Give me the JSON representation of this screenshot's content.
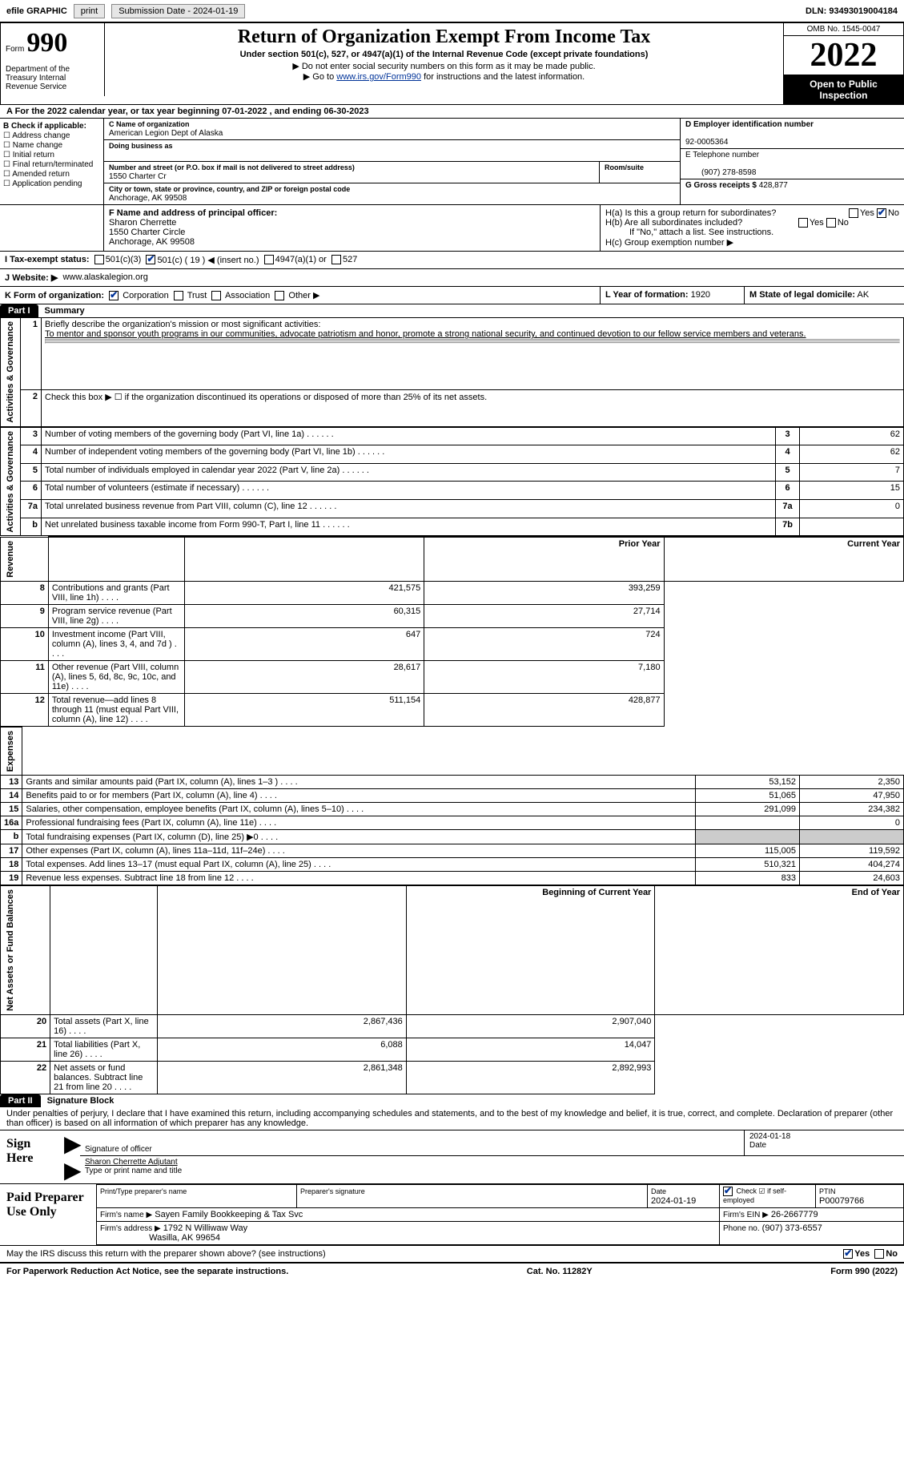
{
  "topbar": {
    "efile": "efile GRAPHIC",
    "print": "print",
    "submission": "Submission Date - 2024-01-19",
    "dln": "DLN: 93493019004184"
  },
  "header": {
    "form": "Form",
    "num": "990",
    "dept": "Department of the Treasury Internal Revenue Service",
    "title": "Return of Organization Exempt From Income Tax",
    "sub1": "Under section 501(c), 527, or 4947(a)(1) of the Internal Revenue Code (except private foundations)",
    "note1": "▶ Do not enter social security numbers on this form as it may be made public.",
    "note2_pre": "▶ Go to ",
    "note2_link": "www.irs.gov/Form990",
    "note2_post": " for instructions and the latest information.",
    "omb": "OMB No. 1545-0047",
    "year": "2022",
    "open": "Open to Public Inspection"
  },
  "lineA": "A For the 2022 calendar year, or tax year beginning 07-01-2022    , and ending 06-30-2023",
  "B": {
    "hdr": "B Check if applicable:",
    "opts": [
      "Address change",
      "Name change",
      "Initial return",
      "Final return/terminated",
      "Amended return",
      "Application pending"
    ]
  },
  "C": {
    "name_lbl": "C Name of organization",
    "name": "American Legion Dept of Alaska",
    "dba_lbl": "Doing business as",
    "dba": "",
    "street_lbl": "Number and street (or P.O. box if mail is not delivered to street address)",
    "room_lbl": "Room/suite",
    "street": "1550 Charter Cr",
    "city_lbl": "City or town, state or province, country, and ZIP or foreign postal code",
    "city": "Anchorage, AK  99508"
  },
  "D": {
    "lbl": "D Employer identification number",
    "val": "92-0005364"
  },
  "E": {
    "lbl": "E Telephone number",
    "val": "(907) 278-8598"
  },
  "G": {
    "lbl": "G Gross receipts $",
    "val": "428,877"
  },
  "F": {
    "lbl": "F  Name and address of principal officer:",
    "name": "Sharon Cherrette",
    "addr1": "1550 Charter Circle",
    "addr2": "Anchorage, AK  99508"
  },
  "H": {
    "a": "H(a)  Is this a group return for subordinates?",
    "a_ans": "No",
    "b": "H(b)  Are all subordinates included?",
    "b_note": "If \"No,\" attach a list. See instructions.",
    "c": "H(c)  Group exemption number ▶"
  },
  "I": {
    "lbl": "I    Tax-exempt status:",
    "opts": [
      "501(c)(3)",
      "501(c) ( 19 ) ◀ (insert no.)",
      "4947(a)(1) or",
      "527"
    ]
  },
  "J": {
    "lbl": "J   Website: ▶",
    "val": "www.alaskalegion.org"
  },
  "K": {
    "lbl": "K Form of organization:",
    "opts": [
      "Corporation",
      "Trust",
      "Association",
      "Other ▶"
    ]
  },
  "L": {
    "lbl": "L Year of formation:",
    "val": "1920"
  },
  "M": {
    "lbl": "M State of legal domicile:",
    "val": "AK"
  },
  "part1": {
    "tab": "Part I",
    "title": "Summary",
    "line1_lbl": "Briefly describe the organization's mission or most significant activities:",
    "line1": "To mentor and sponsor youth programs in our communities, advocate patriotism and honor, promote a strong national security, and continued devotion to our fellow service members and veterans.",
    "line2": "Check this box ▶ ☐ if the organization discontinued its operations or disposed of more than 25% of its net assets.",
    "sections": {
      "gov": "Activities & Governance",
      "rev": "Revenue",
      "exp": "Expenses",
      "net": "Net Assets or Fund Balances"
    },
    "rows_top": [
      {
        "n": "3",
        "txt": "Number of voting members of the governing body (Part VI, line 1a)",
        "box": "3",
        "val": "62"
      },
      {
        "n": "4",
        "txt": "Number of independent voting members of the governing body (Part VI, line 1b)",
        "box": "4",
        "val": "62"
      },
      {
        "n": "5",
        "txt": "Total number of individuals employed in calendar year 2022 (Part V, line 2a)",
        "box": "5",
        "val": "7"
      },
      {
        "n": "6",
        "txt": "Total number of volunteers (estimate if necessary)",
        "box": "6",
        "val": "15"
      },
      {
        "n": "7a",
        "txt": "Total unrelated business revenue from Part VIII, column (C), line 12",
        "box": "7a",
        "val": "0"
      },
      {
        "n": "b",
        "txt": "Net unrelated business taxable income from Form 990-T, Part I, line 11",
        "box": "7b",
        "val": ""
      }
    ],
    "hdr_prior": "Prior Year",
    "hdr_curr": "Current Year",
    "rows_rev": [
      {
        "n": "8",
        "txt": "Contributions and grants (Part VIII, line 1h)",
        "p": "421,575",
        "c": "393,259"
      },
      {
        "n": "9",
        "txt": "Program service revenue (Part VIII, line 2g)",
        "p": "60,315",
        "c": "27,714"
      },
      {
        "n": "10",
        "txt": "Investment income (Part VIII, column (A), lines 3, 4, and 7d )",
        "p": "647",
        "c": "724"
      },
      {
        "n": "11",
        "txt": "Other revenue (Part VIII, column (A), lines 5, 6d, 8c, 9c, 10c, and 11e)",
        "p": "28,617",
        "c": "7,180"
      },
      {
        "n": "12",
        "txt": "Total revenue—add lines 8 through 11 (must equal Part VIII, column (A), line 12)",
        "p": "511,154",
        "c": "428,877"
      }
    ],
    "rows_exp": [
      {
        "n": "13",
        "txt": "Grants and similar amounts paid (Part IX, column (A), lines 1–3 )",
        "p": "53,152",
        "c": "2,350"
      },
      {
        "n": "14",
        "txt": "Benefits paid to or for members (Part IX, column (A), line 4)",
        "p": "51,065",
        "c": "47,950"
      },
      {
        "n": "15",
        "txt": "Salaries, other compensation, employee benefits (Part IX, column (A), lines 5–10)",
        "p": "291,099",
        "c": "234,382"
      },
      {
        "n": "16a",
        "txt": "Professional fundraising fees (Part IX, column (A), line 11e)",
        "p": "",
        "c": "0"
      },
      {
        "n": "b",
        "txt": "Total fundraising expenses (Part IX, column (D), line 25) ▶0",
        "p": "grey",
        "c": "grey"
      },
      {
        "n": "17",
        "txt": "Other expenses (Part IX, column (A), lines 11a–11d, 11f–24e)",
        "p": "115,005",
        "c": "119,592"
      },
      {
        "n": "18",
        "txt": "Total expenses. Add lines 13–17 (must equal Part IX, column (A), line 25)",
        "p": "510,321",
        "c": "404,274"
      },
      {
        "n": "19",
        "txt": "Revenue less expenses. Subtract line 18 from line 12",
        "p": "833",
        "c": "24,603"
      }
    ],
    "hdr_beg": "Beginning of Current Year",
    "hdr_end": "End of Year",
    "rows_net": [
      {
        "n": "20",
        "txt": "Total assets (Part X, line 16)",
        "p": "2,867,436",
        "c": "2,907,040"
      },
      {
        "n": "21",
        "txt": "Total liabilities (Part X, line 26)",
        "p": "6,088",
        "c": "14,047"
      },
      {
        "n": "22",
        "txt": "Net assets or fund balances. Subtract line 21 from line 20",
        "p": "2,861,348",
        "c": "2,892,993"
      }
    ]
  },
  "part2": {
    "tab": "Part II",
    "title": "Signature Block",
    "decl": "Under penalties of perjury, I declare that I have examined this return, including accompanying schedules and statements, and to the best of my knowledge and belief, it is true, correct, and complete. Declaration of preparer (other than officer) is based on all information of which preparer has any knowledge.",
    "sign_here": "Sign Here",
    "sig_officer": "Signature of officer",
    "sig_date": "2024-01-18",
    "sig_date_lbl": "Date",
    "sig_name": "Sharon Cherrette  Adjutant",
    "sig_name_lbl": "Type or print name and title",
    "paid": "Paid Preparer Use Only",
    "prep_name_lbl": "Print/Type preparer's name",
    "prep_sig_lbl": "Preparer's signature",
    "prep_date_lbl": "Date",
    "prep_date": "2024-01-19",
    "prep_self": "Check ☑ if self-employed",
    "ptin_lbl": "PTIN",
    "ptin": "P00079766",
    "firm_name_lbl": "Firm's name    ▶",
    "firm_name": "Sayen Family Bookkeeping & Tax Svc",
    "firm_ein_lbl": "Firm's EIN ▶",
    "firm_ein": "26-2667779",
    "firm_addr_lbl": "Firm's address ▶",
    "firm_addr1": "1792 N Williwaw Way",
    "firm_addr2": "Wasilla, AK  99654",
    "phone_lbl": "Phone no.",
    "phone": "(907) 373-6557",
    "discuss": "May the IRS discuss this return with the preparer shown above? (see instructions)",
    "discuss_ans": "Yes"
  },
  "footer": {
    "left": "For Paperwork Reduction Act Notice, see the separate instructions.",
    "mid": "Cat. No. 11282Y",
    "right": "Form 990 (2022)"
  }
}
